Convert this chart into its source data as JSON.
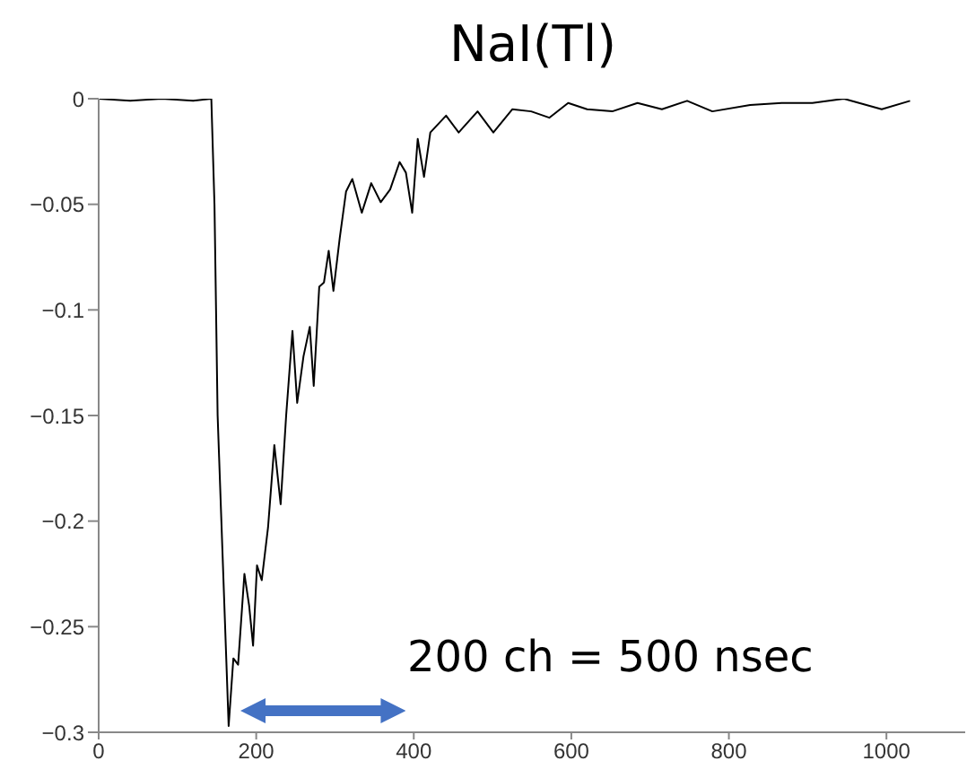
{
  "chart_data": {
    "type": "line",
    "title": "NaI(Tl)",
    "annotations": [
      "200 ch = 500 nsec"
    ],
    "x": [
      0,
      40,
      80,
      120,
      143,
      147,
      151,
      165,
      171,
      177,
      185,
      191,
      196,
      201,
      207,
      215,
      223,
      231,
      238,
      246,
      252,
      260,
      268,
      273,
      280,
      286,
      292,
      298,
      306,
      314,
      322,
      334,
      346,
      358,
      370,
      382,
      390,
      398,
      405,
      413,
      421,
      441,
      457,
      481,
      501,
      525,
      549,
      572,
      596,
      620,
      652,
      684,
      715,
      747,
      779,
      827,
      867,
      906,
      946,
      994,
      1030
    ],
    "series": [
      {
        "color": "#000000",
        "values": [
          0,
          -0.001,
          0,
          -0.001,
          0,
          -0.05,
          -0.15,
          -0.297,
          -0.265,
          -0.268,
          -0.225,
          -0.24,
          -0.259,
          -0.221,
          -0.228,
          -0.203,
          -0.164,
          -0.192,
          -0.15,
          -0.11,
          -0.144,
          -0.122,
          -0.108,
          -0.136,
          -0.089,
          -0.087,
          -0.072,
          -0.091,
          -0.066,
          -0.044,
          -0.038,
          -0.054,
          -0.04,
          -0.049,
          -0.043,
          -0.03,
          -0.035,
          -0.054,
          -0.019,
          -0.037,
          -0.016,
          -0.008,
          -0.016,
          -0.006,
          -0.016,
          -0.005,
          -0.006,
          -0.009,
          -0.002,
          -0.005,
          -0.006,
          -0.002,
          -0.005,
          -0.001,
          -0.006,
          -0.003,
          -0.002,
          -0.002,
          0,
          -0.005,
          -0.001
        ]
      }
    ],
    "xlim": [
      0,
      1100
    ],
    "xticks": [
      0,
      200,
      400,
      600,
      800,
      1000
    ],
    "ylim": [
      -0.3,
      0
    ],
    "yticks": [
      {
        "value": -0.3,
        "label": "−0.3"
      },
      {
        "value": -0.25,
        "label": "−0.25"
      },
      {
        "value": -0.2,
        "label": "−0.2"
      },
      {
        "value": -0.15,
        "label": "−0.15"
      },
      {
        "value": -0.1,
        "label": "−0.1"
      },
      {
        "value": -0.05,
        "label": "−0.05"
      },
      0
    ],
    "grid": false,
    "legend": false,
    "marker": "none",
    "line_style": "solid"
  }
}
